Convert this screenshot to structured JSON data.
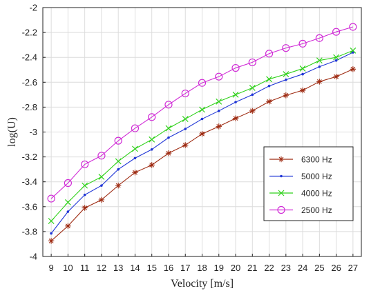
{
  "chart_data": {
    "type": "line",
    "title": "",
    "xlabel": "Velocity [m/s]",
    "ylabel": "log(U)",
    "x": [
      9,
      10,
      11,
      12,
      13,
      14,
      15,
      16,
      17,
      18,
      19,
      20,
      21,
      22,
      23,
      24,
      25,
      26,
      27
    ],
    "xticks": [
      9,
      10,
      11,
      12,
      13,
      14,
      15,
      16,
      17,
      18,
      19,
      20,
      21,
      22,
      23,
      24,
      25,
      26,
      27
    ],
    "yticks": [
      -4,
      -3.8,
      -3.6,
      -3.4,
      -3.2,
      -3,
      -2.8,
      -2.6,
      -2.4,
      -2.2,
      -2
    ],
    "xlim": [
      8.5,
      27.5
    ],
    "ylim": [
      -4,
      -2
    ],
    "grid": true,
    "legend_position": "lower-right",
    "series": [
      {
        "name": "6300 Hz",
        "color": "#9e2b12",
        "marker": "asterisk",
        "values": [
          -3.875,
          -3.755,
          -3.61,
          -3.545,
          -3.43,
          -3.325,
          -3.265,
          -3.17,
          -3.105,
          -3.015,
          -2.955,
          -2.89,
          -2.83,
          -2.755,
          -2.705,
          -2.665,
          -2.595,
          -2.555,
          -2.495
        ]
      },
      {
        "name": "5000 Hz",
        "color": "#1f35d6",
        "marker": "dot",
        "values": [
          -3.815,
          -3.64,
          -3.505,
          -3.43,
          -3.3,
          -3.21,
          -3.14,
          -3.045,
          -2.975,
          -2.895,
          -2.83,
          -2.76,
          -2.7,
          -2.63,
          -2.58,
          -2.535,
          -2.475,
          -2.425,
          -2.36
        ]
      },
      {
        "name": "4000 Hz",
        "color": "#2fd11a",
        "marker": "x",
        "values": [
          -3.715,
          -3.565,
          -3.43,
          -3.36,
          -3.235,
          -3.135,
          -3.06,
          -2.97,
          -2.895,
          -2.82,
          -2.755,
          -2.7,
          -2.645,
          -2.575,
          -2.535,
          -2.49,
          -2.425,
          -2.4,
          -2.345
        ]
      },
      {
        "name": "2500 Hz",
        "color": "#d02bd6",
        "marker": "circle",
        "values": [
          -3.535,
          -3.41,
          -3.26,
          -3.19,
          -3.07,
          -2.97,
          -2.88,
          -2.78,
          -2.69,
          -2.605,
          -2.555,
          -2.485,
          -2.44,
          -2.37,
          -2.325,
          -2.29,
          -2.245,
          -2.195,
          -2.155
        ]
      }
    ]
  }
}
